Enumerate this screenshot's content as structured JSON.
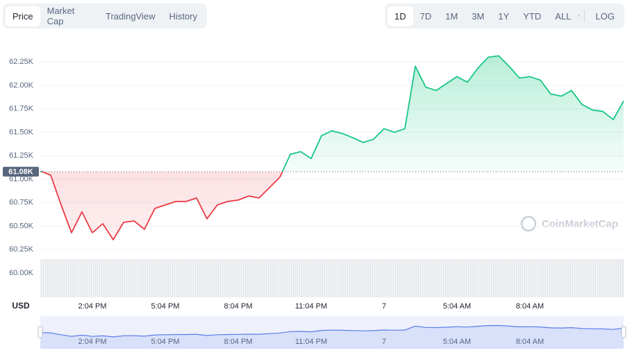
{
  "tabs": [
    "Price",
    "Market Cap",
    "TradingView",
    "History"
  ],
  "ranges": [
    "1D",
    "7D",
    "1M",
    "3M",
    "1Y",
    "YTD",
    "ALL"
  ],
  "log_label": "LOG",
  "watermark": "CoinMarketCap",
  "chart_data": {
    "type": "line",
    "y_axis_label": "USD",
    "categories": [
      null,
      null,
      null,
      null,
      null,
      "2:04 PM",
      null,
      null,
      null,
      null,
      null,
      null,
      "5:04 PM",
      null,
      null,
      null,
      null,
      null,
      null,
      "8:04 PM",
      null,
      null,
      null,
      null,
      null,
      null,
      "11:04 PM",
      null,
      null,
      null,
      null,
      null,
      null,
      "7",
      null,
      null,
      null,
      null,
      null,
      null,
      "5:04 AM",
      null,
      null,
      null,
      null,
      null,
      null,
      "8:04 AM",
      null,
      null,
      null,
      null,
      null,
      null,
      null,
      null,
      null
    ],
    "values": [
      61087,
      61043,
      60725,
      60429,
      60651,
      60429,
      60525,
      60355,
      60540,
      60555,
      60466,
      60688,
      60725,
      60762,
      60762,
      60799,
      60577,
      60725,
      60762,
      60777,
      60821,
      60799,
      60910,
      61021,
      61265,
      61294,
      61220,
      61464,
      61516,
      61487,
      61442,
      61391,
      61427,
      61538,
      61501,
      61538,
      62204,
      61982,
      61945,
      62019,
      62093,
      62034,
      62182,
      62300,
      62315,
      62204,
      62078,
      62093,
      62056,
      61908,
      61885,
      61945,
      61797,
      61738,
      61723,
      61635,
      61834
    ],
    "up_color": "#16c784",
    "down_color": "#ea3943",
    "reference": {
      "value": 61080,
      "label": "61.08K"
    },
    "ylim": [
      59740,
      62540
    ],
    "yticks": [
      {
        "value": 60000,
        "label": "60.00K"
      },
      {
        "value": 60250,
        "label": "60.25K"
      },
      {
        "value": 60500,
        "label": "60.50K"
      },
      {
        "value": 60750,
        "label": "60.75K"
      },
      {
        "value": 61000,
        "label": "61.00K"
      },
      {
        "value": 61250,
        "label": "61.25K"
      },
      {
        "value": 61500,
        "label": "61.50K"
      },
      {
        "value": 61750,
        "label": "61.75K"
      },
      {
        "value": 62000,
        "label": "62.00K"
      },
      {
        "value": 62250,
        "label": "62.25K"
      }
    ],
    "grid": true
  }
}
